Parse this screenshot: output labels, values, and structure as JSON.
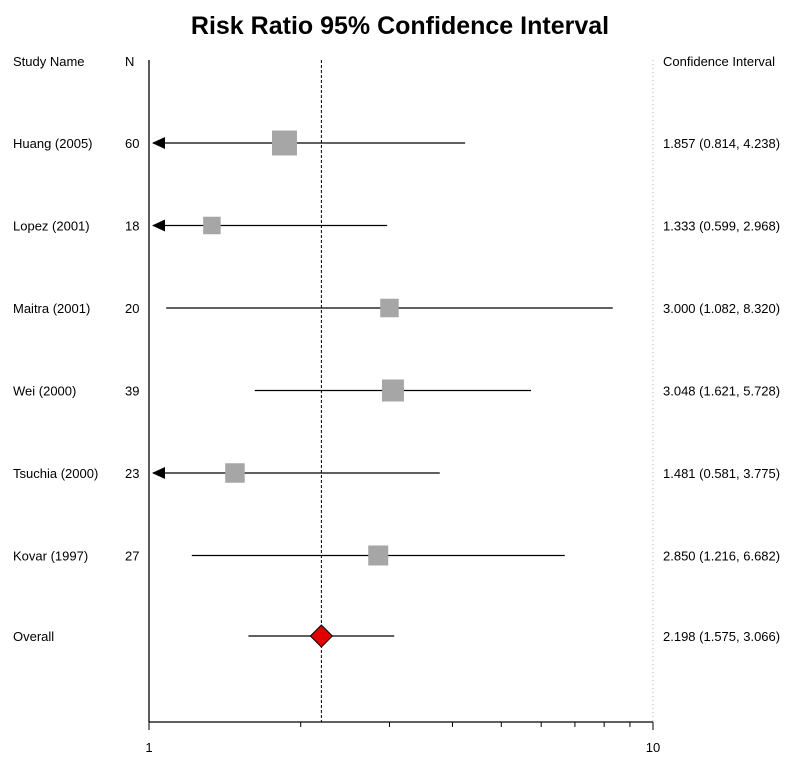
{
  "chart_data": {
    "type": "forest",
    "title": "Risk Ratio 95% Confidence Interval",
    "columns": {
      "study": "Study Name",
      "n": "N",
      "ci": "Confidence Interval"
    },
    "x_scale": "log",
    "xlim": [
      1,
      10
    ],
    "x_tick_labels": [
      "1",
      "10"
    ],
    "reference_line": 2.198,
    "studies": [
      {
        "name": "Huang (2005)",
        "n": "60",
        "rr": 1.857,
        "lower": 0.814,
        "upper": 4.238,
        "ci_text": "1.857 (0.814, 4.238)",
        "weight": 3
      },
      {
        "name": "Lopez (2001)",
        "n": "18",
        "rr": 1.333,
        "lower": 0.599,
        "upper": 2.968,
        "ci_text": "1.333 (0.599, 2.968)",
        "weight": 1.5
      },
      {
        "name": "Maitra (2001)",
        "n": "20",
        "rr": 3.0,
        "lower": 1.082,
        "upper": 8.32,
        "ci_text": "3.000 (1.082, 8.320)",
        "weight": 1.7
      },
      {
        "name": "Wei (2000)",
        "n": "39",
        "rr": 3.048,
        "lower": 1.621,
        "upper": 5.728,
        "ci_text": "3.048 (1.621, 5.728)",
        "weight": 2.4
      },
      {
        "name": "Tsuchia (2000)",
        "n": "23",
        "rr": 1.481,
        "lower": 0.581,
        "upper": 3.775,
        "ci_text": "1.481 (0.581, 3.775)",
        "weight": 1.9
      },
      {
        "name": "Kovar (1997)",
        "n": "27",
        "rr": 2.85,
        "lower": 1.216,
        "upper": 6.682,
        "ci_text": "2.850 (1.216, 6.682)",
        "weight": 2.0
      }
    ],
    "overall": {
      "name": "Overall",
      "rr": 2.198,
      "lower": 1.575,
      "upper": 3.066,
      "ci_text": "2.198 (1.575, 3.066)"
    },
    "colors": {
      "study_marker": "#a6a6a6",
      "overall_marker": "#e00000",
      "line": "#000000"
    }
  }
}
